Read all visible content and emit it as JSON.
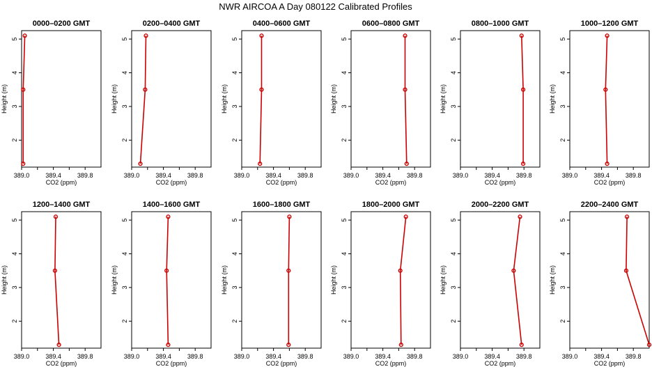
{
  "figure": {
    "title": "NWR AIRCOA A  Day 080122  Calibrated Profiles"
  },
  "colors": {
    "series": "#cc0000",
    "axis": "#000000"
  },
  "chart_data": [
    {
      "type": "line",
      "title": "0000–0200 GMT",
      "xlabel": "CO2 (ppm)",
      "ylabel": "Height (m)",
      "xlim": [
        389.0,
        390.0
      ],
      "ylim": [
        1.2,
        5.25
      ],
      "xticks": [
        389.0,
        389.4,
        389.8
      ],
      "xtick_labels": [
        "389.0",
        "389.4",
        "389.8"
      ],
      "yticks": [
        2,
        3,
        4,
        5
      ],
      "ytick_labels": [
        "2",
        "3",
        "4",
        "5"
      ],
      "points": [
        {
          "x": 389.04,
          "y": 5.1
        },
        {
          "x": 389.02,
          "y": 3.5
        },
        {
          "x": 389.02,
          "y": 1.3
        }
      ]
    },
    {
      "type": "line",
      "title": "0200–0400 GMT",
      "xlabel": "CO2 (ppm)",
      "ylabel": "Height (m)",
      "xlim": [
        389.0,
        390.0
      ],
      "ylim": [
        1.2,
        5.25
      ],
      "xticks": [
        389.0,
        389.4,
        389.8
      ],
      "xtick_labels": [
        "389.0",
        "389.4",
        "389.8"
      ],
      "yticks": [
        2,
        3,
        4,
        5
      ],
      "ytick_labels": [
        "2",
        "3",
        "4",
        "5"
      ],
      "points": [
        {
          "x": 389.18,
          "y": 5.1
        },
        {
          "x": 389.17,
          "y": 3.5
        },
        {
          "x": 389.11,
          "y": 1.3
        }
      ]
    },
    {
      "type": "line",
      "title": "0400–0600 GMT",
      "xlabel": "CO2 (ppm)",
      "ylabel": "Height (m)",
      "xlim": [
        389.0,
        390.0
      ],
      "ylim": [
        1.2,
        5.25
      ],
      "xticks": [
        389.0,
        389.4,
        389.8
      ],
      "xtick_labels": [
        "389.0",
        "389.4",
        "389.8"
      ],
      "yticks": [
        2,
        3,
        4,
        5
      ],
      "ytick_labels": [
        "2",
        "3",
        "4",
        "5"
      ],
      "points": [
        {
          "x": 389.25,
          "y": 5.1
        },
        {
          "x": 389.25,
          "y": 3.5
        },
        {
          "x": 389.23,
          "y": 1.3
        }
      ]
    },
    {
      "type": "line",
      "title": "0600–0800 GMT",
      "xlabel": "CO2 (ppm)",
      "ylabel": "Height (m)",
      "xlim": [
        389.0,
        390.0
      ],
      "ylim": [
        1.2,
        5.25
      ],
      "xticks": [
        389.0,
        389.4,
        389.8
      ],
      "xtick_labels": [
        "389.0",
        "389.4",
        "389.8"
      ],
      "yticks": [
        2,
        3,
        4,
        5
      ],
      "ytick_labels": [
        "2",
        "3",
        "4",
        "5"
      ],
      "points": [
        {
          "x": 389.68,
          "y": 5.1
        },
        {
          "x": 389.68,
          "y": 3.5
        },
        {
          "x": 389.7,
          "y": 1.3
        }
      ]
    },
    {
      "type": "line",
      "title": "0800–1000 GMT",
      "xlabel": "CO2 (ppm)",
      "ylabel": "Height (m)",
      "xlim": [
        389.0,
        390.0
      ],
      "ylim": [
        1.2,
        5.25
      ],
      "xticks": [
        389.0,
        389.4,
        389.8
      ],
      "xtick_labels": [
        "389.0",
        "389.4",
        "389.8"
      ],
      "yticks": [
        2,
        3,
        4,
        5
      ],
      "ytick_labels": [
        "2",
        "3",
        "4",
        "5"
      ],
      "points": [
        {
          "x": 389.77,
          "y": 5.1
        },
        {
          "x": 389.79,
          "y": 3.5
        },
        {
          "x": 389.79,
          "y": 1.3
        }
      ]
    },
    {
      "type": "line",
      "title": "1000–1200 GMT",
      "xlabel": "CO2 (ppm)",
      "ylabel": "Height (m)",
      "xlim": [
        389.0,
        390.0
      ],
      "ylim": [
        1.2,
        5.25
      ],
      "xticks": [
        389.0,
        389.4,
        389.8
      ],
      "xtick_labels": [
        "389.0",
        "389.4",
        "389.8"
      ],
      "yticks": [
        2,
        3,
        4,
        5
      ],
      "ytick_labels": [
        "2",
        "3",
        "4",
        "5"
      ],
      "points": [
        {
          "x": 389.47,
          "y": 5.1
        },
        {
          "x": 389.45,
          "y": 3.5
        },
        {
          "x": 389.47,
          "y": 1.3
        }
      ]
    },
    {
      "type": "line",
      "title": "1200–1400 GMT",
      "xlabel": "CO2 (ppm)",
      "ylabel": "Height (m)",
      "xlim": [
        389.0,
        390.0
      ],
      "ylim": [
        1.2,
        5.25
      ],
      "xticks": [
        389.0,
        389.4,
        389.8
      ],
      "xtick_labels": [
        "389.0",
        "389.4",
        "389.8"
      ],
      "yticks": [
        2,
        3,
        4,
        5
      ],
      "ytick_labels": [
        "2",
        "3",
        "4",
        "5"
      ],
      "points": [
        {
          "x": 389.43,
          "y": 5.1
        },
        {
          "x": 389.42,
          "y": 3.5
        },
        {
          "x": 389.47,
          "y": 1.3
        }
      ]
    },
    {
      "type": "line",
      "title": "1400–1600 GMT",
      "xlabel": "CO2 (ppm)",
      "ylabel": "Height (m)",
      "xlim": [
        389.0,
        390.0
      ],
      "ylim": [
        1.2,
        5.25
      ],
      "xticks": [
        389.0,
        389.4,
        389.8
      ],
      "xtick_labels": [
        "389.0",
        "389.4",
        "389.8"
      ],
      "yticks": [
        2,
        3,
        4,
        5
      ],
      "ytick_labels": [
        "2",
        "3",
        "4",
        "5"
      ],
      "points": [
        {
          "x": 389.46,
          "y": 5.1
        },
        {
          "x": 389.44,
          "y": 3.5
        },
        {
          "x": 389.46,
          "y": 1.3
        }
      ]
    },
    {
      "type": "line",
      "title": "1600–1800 GMT",
      "xlabel": "CO2 (ppm)",
      "ylabel": "Height (m)",
      "xlim": [
        389.0,
        390.0
      ],
      "ylim": [
        1.2,
        5.25
      ],
      "xticks": [
        389.0,
        389.4,
        389.8
      ],
      "xtick_labels": [
        "389.0",
        "389.4",
        "389.8"
      ],
      "yticks": [
        2,
        3,
        4,
        5
      ],
      "ytick_labels": [
        "2",
        "3",
        "4",
        "5"
      ],
      "points": [
        {
          "x": 389.6,
          "y": 5.1
        },
        {
          "x": 389.59,
          "y": 3.5
        },
        {
          "x": 389.59,
          "y": 1.3
        }
      ]
    },
    {
      "type": "line",
      "title": "1800–2000 GMT",
      "xlabel": "CO2 (ppm)",
      "ylabel": "Height (m)",
      "xlim": [
        389.0,
        390.0
      ],
      "ylim": [
        1.2,
        5.25
      ],
      "xticks": [
        389.0,
        389.4,
        389.8
      ],
      "xtick_labels": [
        "389.0",
        "389.4",
        "389.8"
      ],
      "yticks": [
        2,
        3,
        4,
        5
      ],
      "ytick_labels": [
        "2",
        "3",
        "4",
        "5"
      ],
      "points": [
        {
          "x": 389.69,
          "y": 5.1
        },
        {
          "x": 389.62,
          "y": 3.5
        },
        {
          "x": 389.63,
          "y": 1.3
        }
      ]
    },
    {
      "type": "line",
      "title": "2000–2200 GMT",
      "xlabel": "CO2 (ppm)",
      "ylabel": "Height (m)",
      "xlim": [
        389.0,
        390.0
      ],
      "ylim": [
        1.2,
        5.25
      ],
      "xticks": [
        389.0,
        389.4,
        389.8
      ],
      "xtick_labels": [
        "389.0",
        "389.4",
        "389.8"
      ],
      "yticks": [
        2,
        3,
        4,
        5
      ],
      "ytick_labels": [
        "2",
        "3",
        "4",
        "5"
      ],
      "points": [
        {
          "x": 389.75,
          "y": 5.1
        },
        {
          "x": 389.67,
          "y": 3.5
        },
        {
          "x": 389.77,
          "y": 1.3
        }
      ]
    },
    {
      "type": "line",
      "title": "2200–2400 GMT",
      "xlabel": "CO2 (ppm)",
      "ylabel": "Height (m)",
      "xlim": [
        389.0,
        390.0
      ],
      "ylim": [
        1.2,
        5.25
      ],
      "xticks": [
        389.0,
        389.4,
        389.8
      ],
      "xtick_labels": [
        "389.0",
        "389.4",
        "389.8"
      ],
      "yticks": [
        2,
        3,
        4,
        5
      ],
      "ytick_labels": [
        "2",
        "3",
        "4",
        "5"
      ],
      "points": [
        {
          "x": 389.72,
          "y": 5.1
        },
        {
          "x": 389.71,
          "y": 3.5
        },
        {
          "x": 390.0,
          "y": 1.3
        }
      ]
    }
  ]
}
